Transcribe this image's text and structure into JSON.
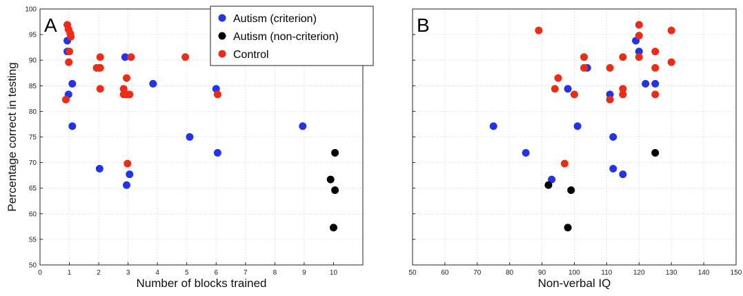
{
  "colors": {
    "criterion": "#2433e8",
    "noncriterion": "#000000",
    "control": "#ee2c16"
  },
  "legend": [
    {
      "key": "criterion",
      "label": "Autism (criterion)"
    },
    {
      "key": "noncriterion",
      "label": "Autism (non-criterion)"
    },
    {
      "key": "control",
      "label": "Control"
    }
  ],
  "chart_data": [
    {
      "type": "scatter",
      "panel": "A",
      "xlabel": "Number of blocks trained",
      "ylabel": "Percentage correct in testing",
      "xlim": [
        0,
        11
      ],
      "ylim": [
        50,
        100
      ],
      "xticks": [
        0,
        1,
        2,
        3,
        4,
        5,
        6,
        7,
        8,
        9,
        10
      ],
      "yticks": [
        50,
        55,
        60,
        65,
        70,
        75,
        80,
        85,
        90,
        95,
        100
      ],
      "grid": true,
      "legend_position": "top",
      "series": [
        {
          "name": "Autism (criterion)",
          "key": "criterion",
          "points": [
            [
              0.93,
              93.8
            ],
            [
              0.93,
              91.7
            ],
            [
              0.97,
              83.3
            ],
            [
              1.1,
              85.4
            ],
            [
              1.1,
              77.1
            ],
            [
              2.03,
              68.8
            ],
            [
              2.9,
              90.6
            ],
            [
              2.95,
              65.6
            ],
            [
              3.05,
              67.7
            ],
            [
              3.85,
              85.4
            ],
            [
              5.1,
              75.0
            ],
            [
              6.0,
              84.4
            ],
            [
              6.05,
              71.9
            ],
            [
              8.95,
              77.1
            ]
          ]
        },
        {
          "name": "Autism (non-criterion)",
          "key": "noncriterion",
          "points": [
            [
              9.9,
              66.7
            ],
            [
              10.0,
              57.3
            ],
            [
              10.05,
              64.6
            ],
            [
              10.05,
              71.9
            ]
          ]
        },
        {
          "name": "Control",
          "key": "control",
          "points": [
            [
              0.88,
              82.3
            ],
            [
              0.93,
              96.9
            ],
            [
              0.97,
              96.0
            ],
            [
              1.03,
              95.2
            ],
            [
              1.05,
              94.6
            ],
            [
              0.98,
              89.6
            ],
            [
              1.0,
              91.7
            ],
            [
              1.93,
              88.5
            ],
            [
              2.0,
              88.5
            ],
            [
              2.05,
              88.5
            ],
            [
              2.05,
              90.6
            ],
            [
              2.05,
              84.4
            ],
            [
              2.85,
              83.3
            ],
            [
              2.85,
              84.4
            ],
            [
              2.95,
              86.5
            ],
            [
              2.95,
              83.3
            ],
            [
              3.05,
              83.3
            ],
            [
              3.1,
              90.6
            ],
            [
              2.98,
              69.8
            ],
            [
              4.95,
              90.6
            ],
            [
              6.05,
              83.3
            ]
          ]
        }
      ]
    },
    {
      "type": "scatter",
      "panel": "B",
      "xlabel": "Non-verbal IQ",
      "ylabel": "",
      "xlim": [
        50,
        150
      ],
      "ylim": [
        50,
        100
      ],
      "xticks": [
        50,
        60,
        70,
        80,
        90,
        100,
        110,
        120,
        130,
        140,
        150
      ],
      "yticks": [
        50,
        55,
        60,
        65,
        70,
        75,
        80,
        85,
        90,
        95,
        100
      ],
      "grid": true,
      "series": [
        {
          "name": "Autism (criterion)",
          "key": "criterion",
          "points": [
            [
              75,
              77.1
            ],
            [
              85,
              71.9
            ],
            [
              93,
              66.7
            ],
            [
              98,
              84.4
            ],
            [
              101,
              77.1
            ],
            [
              104,
              88.5
            ],
            [
              111,
              83.3
            ],
            [
              112,
              75.0
            ],
            [
              112,
              68.8
            ],
            [
              115,
              67.7
            ],
            [
              119,
              93.8
            ],
            [
              120,
              91.7
            ],
            [
              122,
              85.4
            ],
            [
              125,
              85.4
            ]
          ]
        },
        {
          "name": "Autism (non-criterion)",
          "key": "noncriterion",
          "points": [
            [
              92,
              65.6
            ],
            [
              98,
              57.3
            ],
            [
              99,
              64.6
            ],
            [
              125,
              71.9
            ]
          ]
        },
        {
          "name": "Control",
          "key": "control",
          "points": [
            [
              89,
              95.8
            ],
            [
              94,
              84.4
            ],
            [
              95,
              86.5
            ],
            [
              97,
              69.8
            ],
            [
              100,
              83.3
            ],
            [
              103,
              88.5
            ],
            [
              103,
              90.6
            ],
            [
              111,
              88.5
            ],
            [
              111,
              82.3
            ],
            [
              115,
              90.6
            ],
            [
              115,
              84.4
            ],
            [
              115,
              83.3
            ],
            [
              120,
              96.9
            ],
            [
              120,
              94.8
            ],
            [
              120,
              90.6
            ],
            [
              125,
              91.7
            ],
            [
              125,
              88.5
            ],
            [
              125,
              83.3
            ],
            [
              130,
              95.8
            ],
            [
              130,
              89.6
            ]
          ]
        }
      ]
    }
  ]
}
